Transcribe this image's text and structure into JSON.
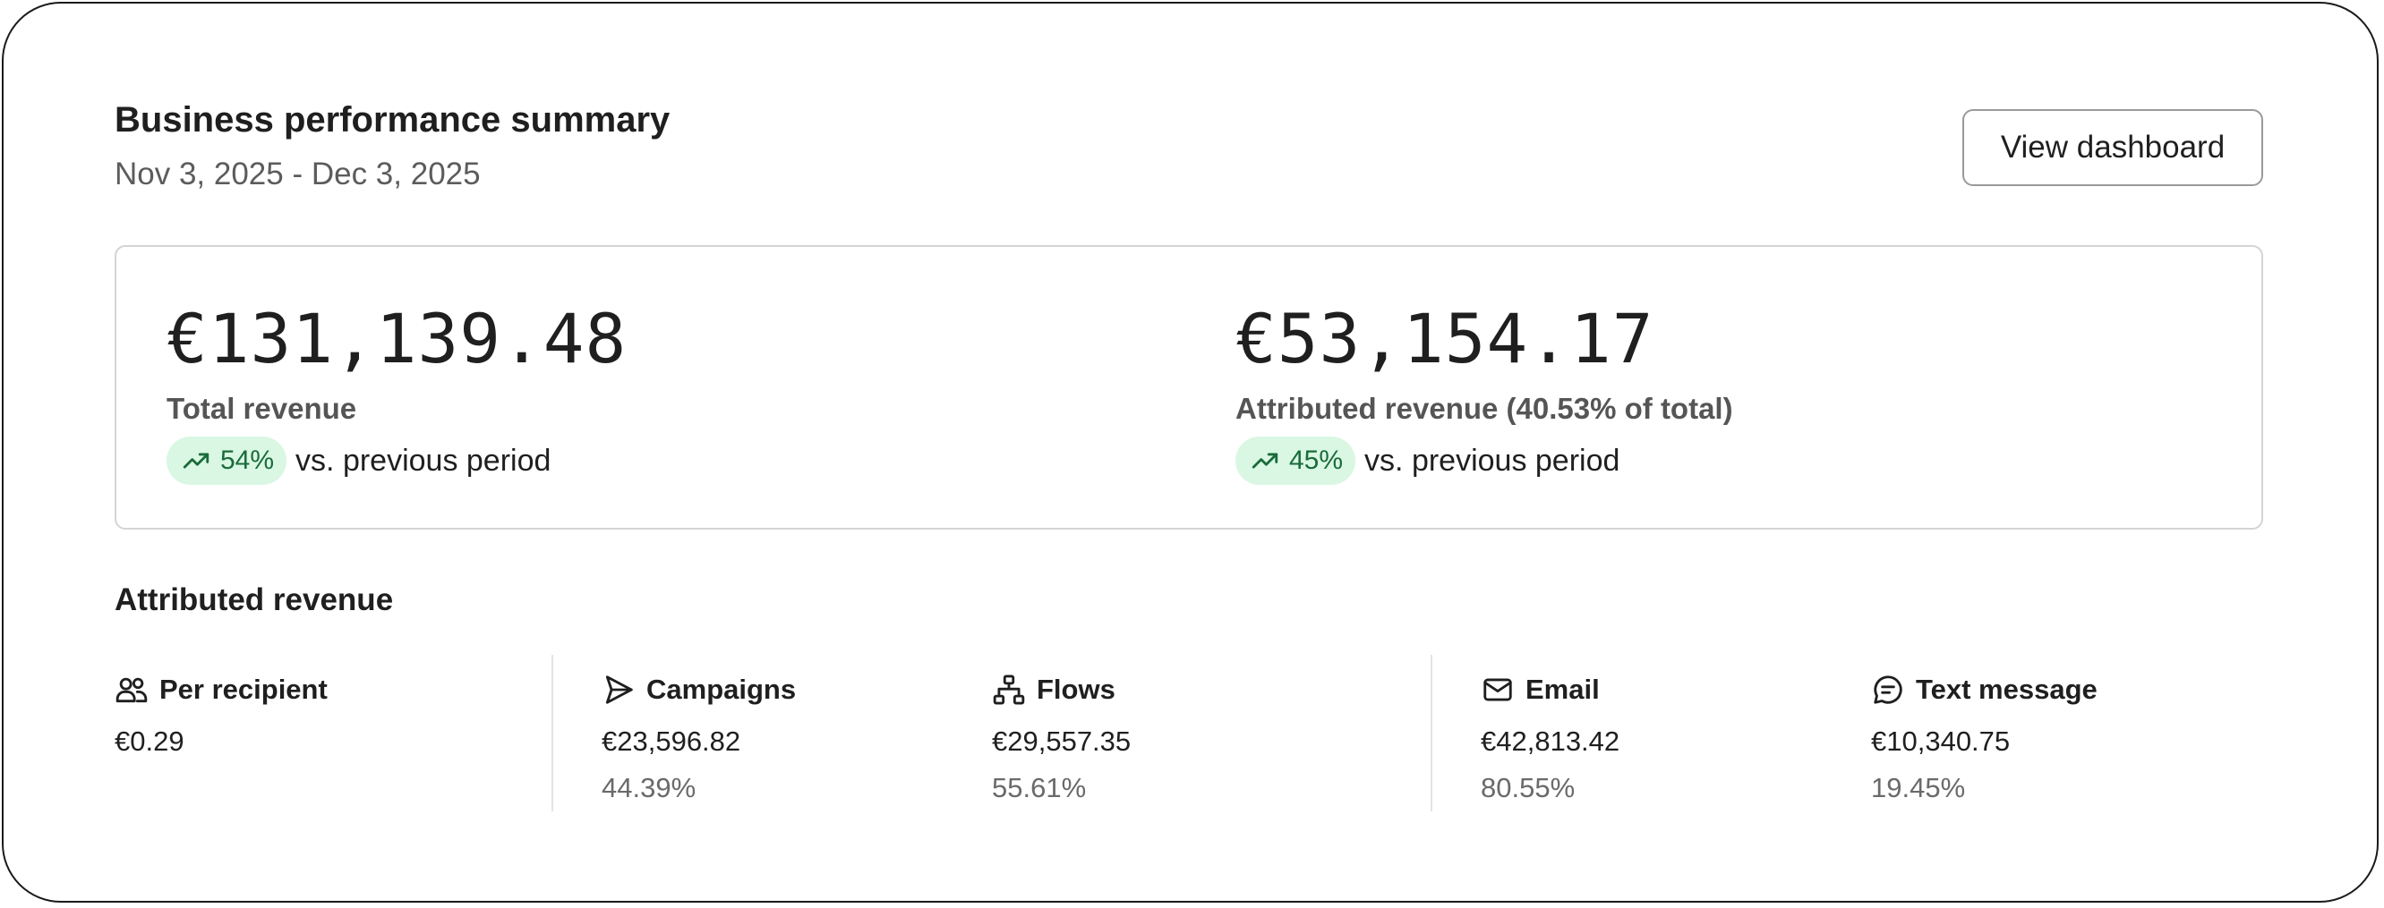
{
  "header": {
    "title": "Business performance summary",
    "date_range": "Nov 3, 2025 - Dec 3, 2025",
    "view_button_label": "View dashboard"
  },
  "summary": {
    "total": {
      "value": "€131,139.48",
      "label": "Total revenue",
      "change": "54%",
      "change_icon": "trending-up-icon",
      "comparison": "vs. previous period"
    },
    "attributed": {
      "value": "€53,154.17",
      "label": "Attributed revenue (40.53% of total)",
      "change": "45%",
      "change_icon": "trending-up-icon",
      "comparison": "vs. previous period"
    }
  },
  "attributed_section": {
    "title": "Attributed revenue",
    "stats": [
      {
        "icon": "users-icon",
        "label": "Per recipient",
        "value": "€0.29",
        "percent": ""
      },
      {
        "icon": "send-icon",
        "label": "Campaigns",
        "value": "€23,596.82",
        "percent": "44.39%"
      },
      {
        "icon": "flows-icon",
        "label": "Flows",
        "value": "€29,557.35",
        "percent": "55.61%"
      },
      {
        "icon": "mail-icon",
        "label": "Email",
        "value": "€42,813.42",
        "percent": "80.55%"
      },
      {
        "icon": "chat-icon",
        "label": "Text message",
        "value": "€10,340.75",
        "percent": "19.45%"
      }
    ]
  },
  "colors": {
    "positive_pill_bg": "#d9f7e3",
    "positive_pill_text": "#1a6b3a",
    "border": "#d4d4d4",
    "muted_text": "#5c5c5c"
  }
}
